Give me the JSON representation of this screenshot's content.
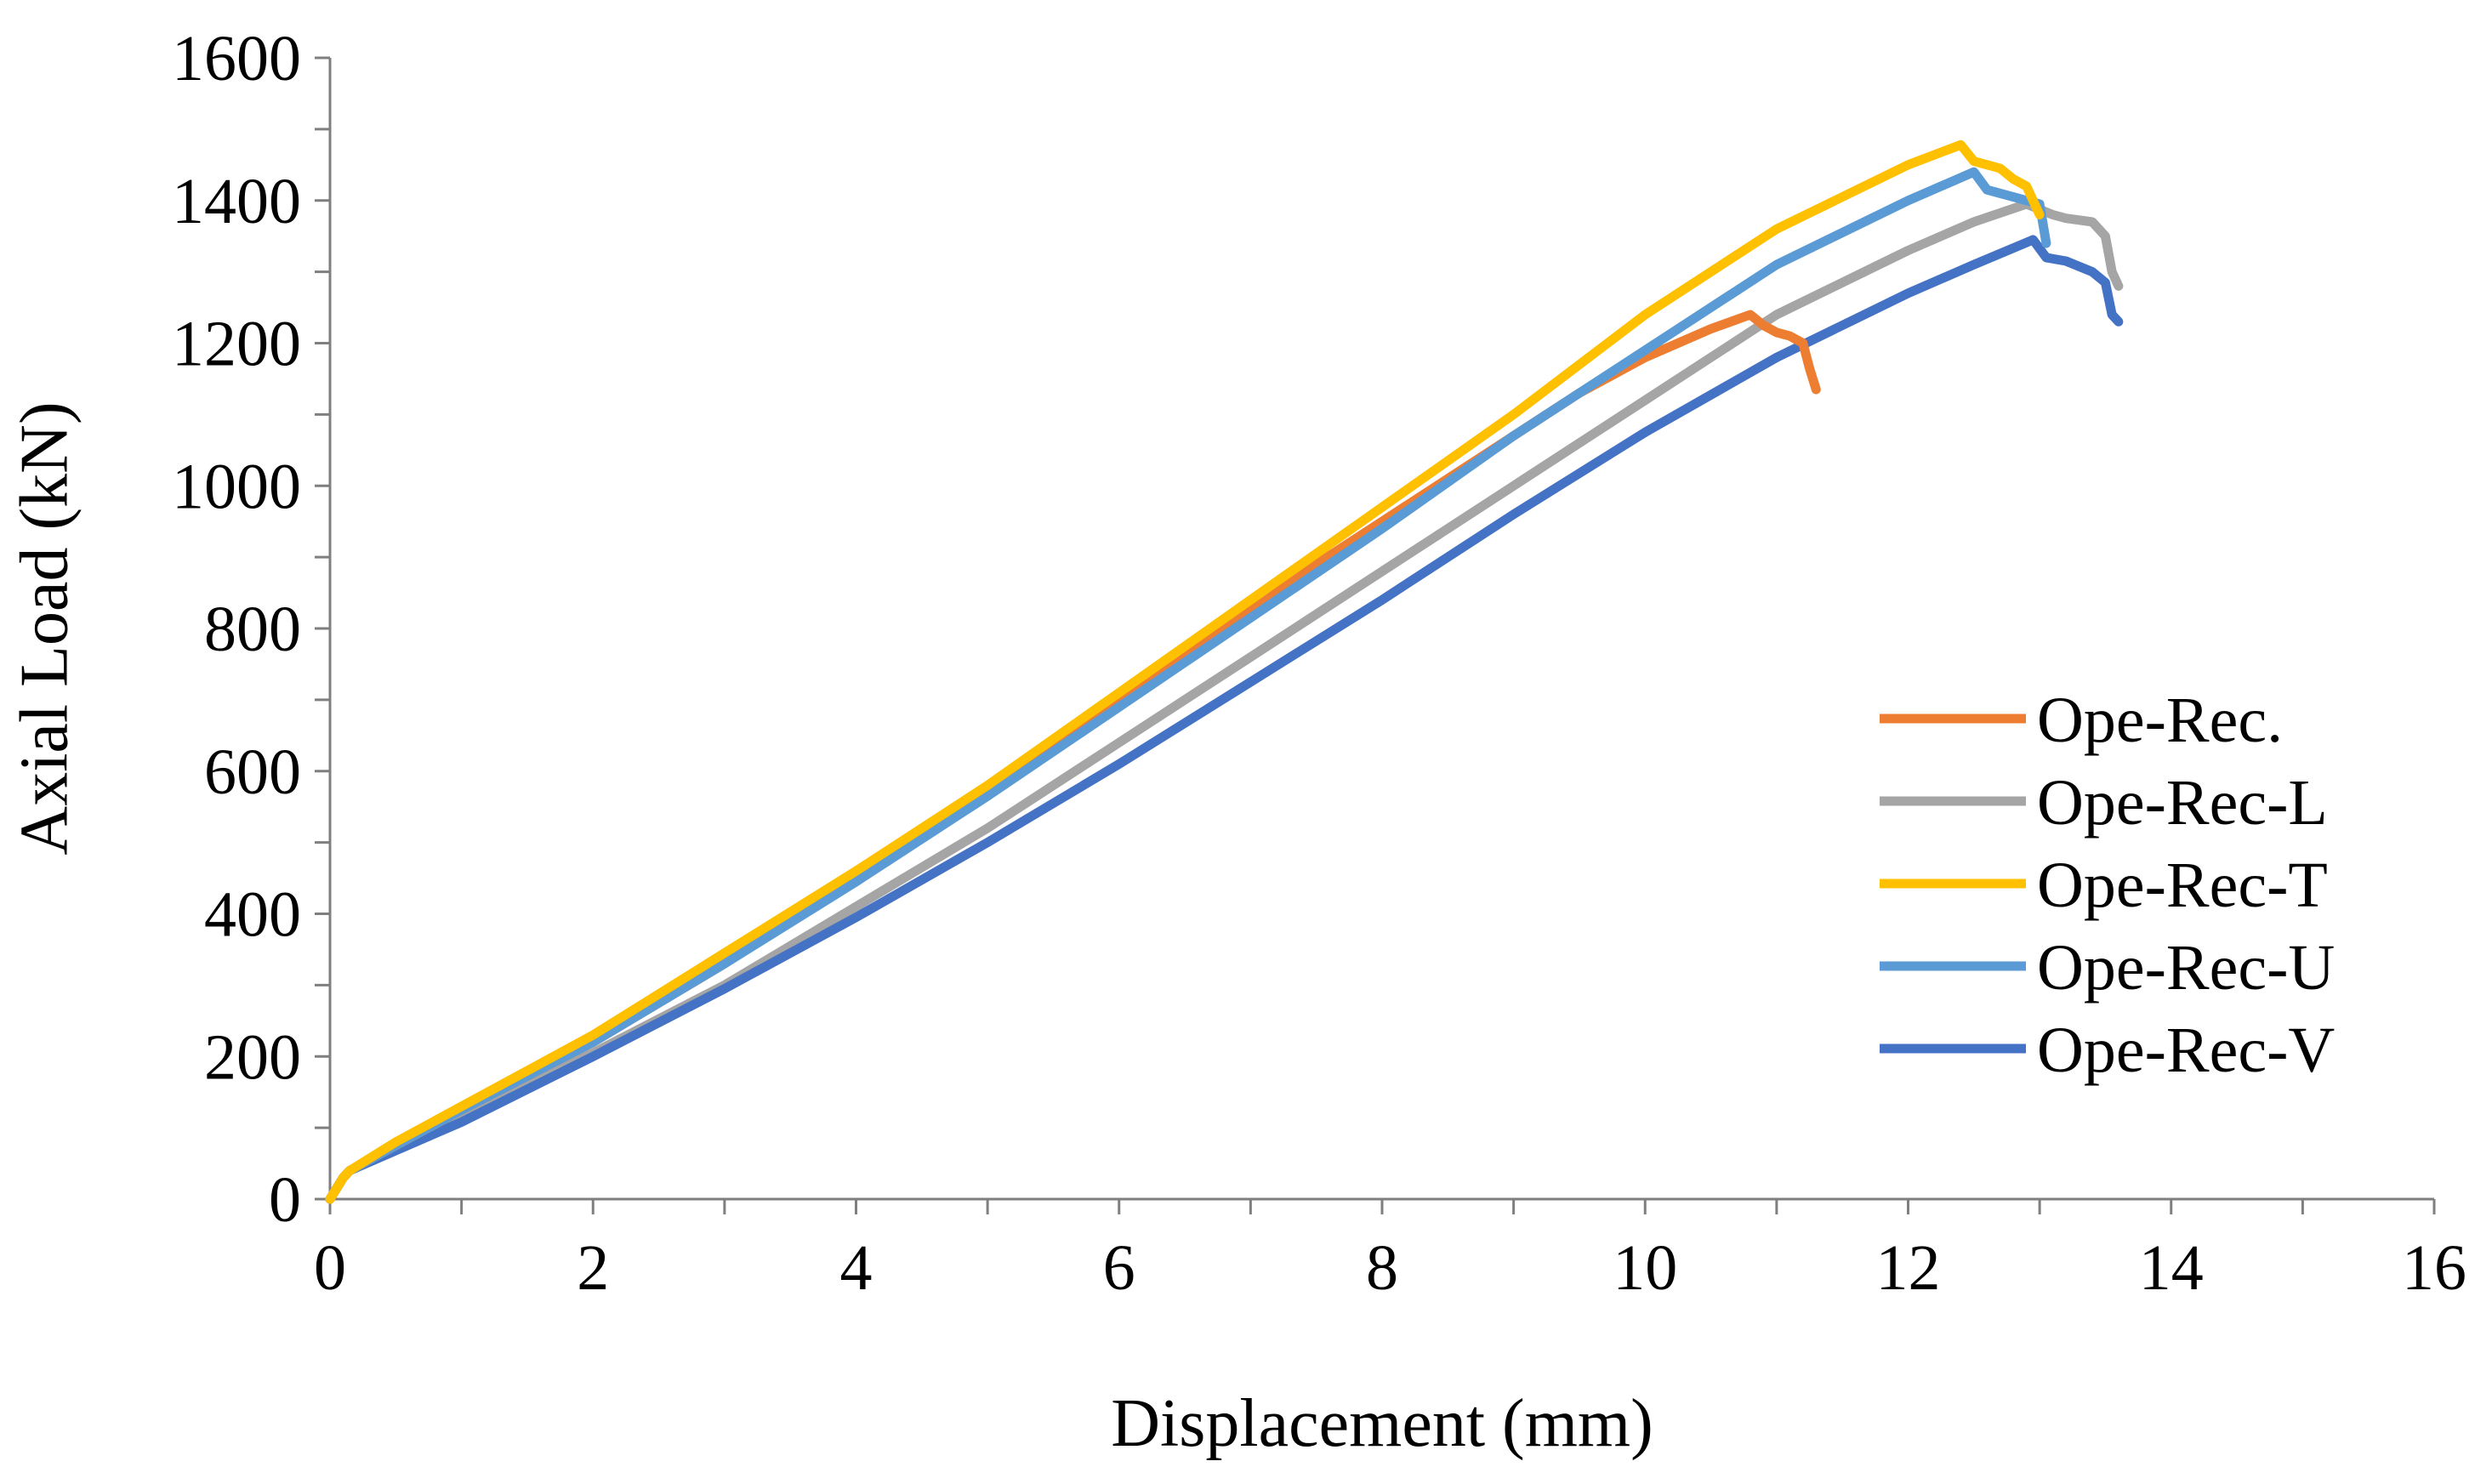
{
  "chart_data": {
    "type": "line",
    "title": "",
    "xlabel": "Displacement (mm)",
    "ylabel": "Axial Load (kN)",
    "xlim": [
      0,
      16
    ],
    "ylim": [
      0,
      1600
    ],
    "x_major_ticks": [
      0,
      2,
      4,
      6,
      8,
      10,
      12,
      14,
      16
    ],
    "y_major_ticks": [
      0,
      200,
      400,
      600,
      800,
      1000,
      1200,
      1400,
      1600
    ],
    "x_tick_labels": [
      "0",
      "2",
      "4",
      "6",
      "8",
      "10",
      "12",
      "14",
      "16"
    ],
    "y_tick_labels": [
      "0",
      "200",
      "400",
      "600",
      "800",
      "1000",
      "1200",
      "1400",
      "1600"
    ],
    "x_minor_step": 1,
    "y_minor_step": 100,
    "grid": false,
    "legend_position": "right",
    "series": [
      {
        "name": "Ope-Rec.",
        "color": "#ED7D31",
        "points": [
          [
            0,
            0
          ],
          [
            0.1,
            30
          ],
          [
            0.15,
            40
          ],
          [
            0.5,
            75
          ],
          [
            1,
            125
          ],
          [
            2,
            220
          ],
          [
            3,
            330
          ],
          [
            4,
            450
          ],
          [
            5,
            570
          ],
          [
            6,
            700
          ],
          [
            7,
            830
          ],
          [
            8,
            950
          ],
          [
            9,
            1070
          ],
          [
            9.5,
            1130
          ],
          [
            10,
            1180
          ],
          [
            10.5,
            1220
          ],
          [
            10.8,
            1240
          ],
          [
            10.9,
            1225
          ],
          [
            11,
            1215
          ],
          [
            11.1,
            1210
          ],
          [
            11.2,
            1200
          ],
          [
            11.25,
            1165
          ],
          [
            11.3,
            1135
          ]
        ]
      },
      {
        "name": "Ope-Rec-L",
        "color": "#A5A5A5",
        "points": [
          [
            0,
            0
          ],
          [
            0.1,
            30
          ],
          [
            0.15,
            40
          ],
          [
            0.5,
            70
          ],
          [
            1,
            115
          ],
          [
            2,
            205
          ],
          [
            3,
            300
          ],
          [
            4,
            410
          ],
          [
            5,
            520
          ],
          [
            6,
            640
          ],
          [
            7,
            760
          ],
          [
            8,
            880
          ],
          [
            9,
            1000
          ],
          [
            10,
            1120
          ],
          [
            11,
            1240
          ],
          [
            12,
            1330
          ],
          [
            12.5,
            1370
          ],
          [
            12.9,
            1395
          ],
          [
            13.1,
            1380
          ],
          [
            13.2,
            1375
          ],
          [
            13.4,
            1370
          ],
          [
            13.5,
            1350
          ],
          [
            13.55,
            1300
          ],
          [
            13.6,
            1280
          ]
        ]
      },
      {
        "name": "Ope-Rec-T",
        "color": "#FFC000",
        "points": [
          [
            0,
            0
          ],
          [
            0.1,
            30
          ],
          [
            0.15,
            40
          ],
          [
            0.5,
            80
          ],
          [
            1,
            130
          ],
          [
            2,
            230
          ],
          [
            3,
            345
          ],
          [
            4,
            460
          ],
          [
            5,
            580
          ],
          [
            6,
            710
          ],
          [
            7,
            840
          ],
          [
            8,
            970
          ],
          [
            9,
            1100
          ],
          [
            10,
            1240
          ],
          [
            11,
            1360
          ],
          [
            12,
            1450
          ],
          [
            12.4,
            1478
          ],
          [
            12.5,
            1455
          ],
          [
            12.7,
            1445
          ],
          [
            12.8,
            1430
          ],
          [
            12.9,
            1420
          ],
          [
            12.95,
            1400
          ],
          [
            13,
            1380
          ]
        ]
      },
      {
        "name": "Ope-Rec-U",
        "color": "#5B9BD5",
        "points": [
          [
            0,
            0
          ],
          [
            0.1,
            30
          ],
          [
            0.15,
            40
          ],
          [
            0.5,
            75
          ],
          [
            1,
            125
          ],
          [
            2,
            220
          ],
          [
            3,
            330
          ],
          [
            4,
            445
          ],
          [
            5,
            565
          ],
          [
            6,
            690
          ],
          [
            7,
            815
          ],
          [
            8,
            940
          ],
          [
            9,
            1070
          ],
          [
            10,
            1190
          ],
          [
            11,
            1310
          ],
          [
            12,
            1400
          ],
          [
            12.5,
            1440
          ],
          [
            12.6,
            1415
          ],
          [
            12.8,
            1405
          ],
          [
            12.9,
            1400
          ],
          [
            13,
            1395
          ],
          [
            13.05,
            1340
          ]
        ]
      },
      {
        "name": "Ope-Rec-V",
        "color": "#4472C4",
        "points": [
          [
            0,
            0
          ],
          [
            0.1,
            30
          ],
          [
            0.15,
            40
          ],
          [
            0.5,
            68
          ],
          [
            1,
            108
          ],
          [
            2,
            200
          ],
          [
            3,
            295
          ],
          [
            4,
            395
          ],
          [
            5,
            500
          ],
          [
            6,
            610
          ],
          [
            7,
            725
          ],
          [
            8,
            840
          ],
          [
            9,
            960
          ],
          [
            10,
            1075
          ],
          [
            11,
            1180
          ],
          [
            12,
            1270
          ],
          [
            12.5,
            1310
          ],
          [
            12.95,
            1345
          ],
          [
            13.05,
            1320
          ],
          [
            13.2,
            1315
          ],
          [
            13.4,
            1300
          ],
          [
            13.5,
            1285
          ],
          [
            13.55,
            1240
          ],
          [
            13.6,
            1230
          ]
        ]
      }
    ]
  }
}
